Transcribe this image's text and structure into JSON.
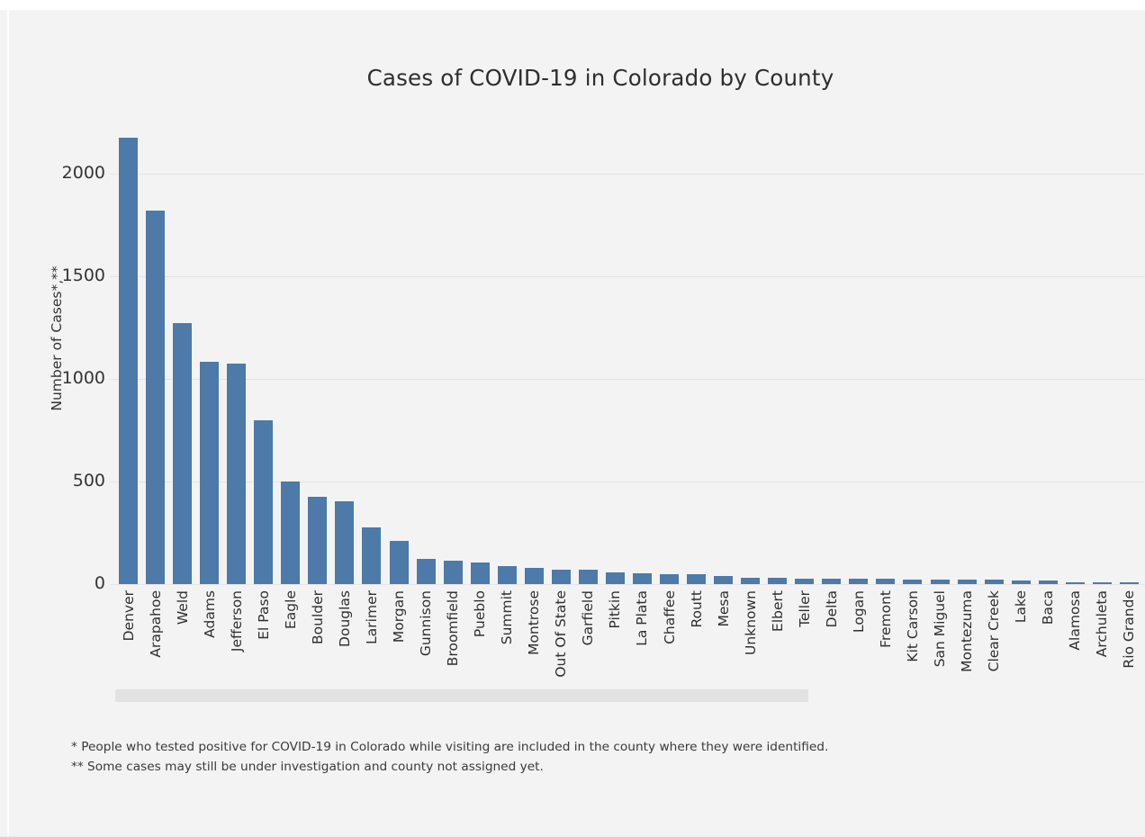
{
  "title": "Cases of COVID-19 in Colorado by County",
  "footnotes": [
    "* People who tested positive for COVID-19 in Colorado while visiting are included in the county where they were identified.",
    "** Some cases may still be under investigation and county not assigned yet."
  ],
  "colors": {
    "bar": "#4d7aa8",
    "background": "#f3f3f3",
    "gridline": "#e4e4e6",
    "scrollbar_thumb": "#e2e2e2",
    "text": "#343434"
  },
  "scrollbar": {
    "present": true,
    "orientation": "horizontal"
  },
  "chart_data": {
    "type": "bar",
    "title": "Cases of COVID-19 in Colorado by County",
    "xlabel": "",
    "ylabel": "Number of Cases*,**",
    "ylim": [
      0,
      2230
    ],
    "yticks": [
      0,
      500,
      1000,
      1500,
      2000
    ],
    "grid": true,
    "legend": "none",
    "bar_color": "#4d7aa8",
    "categories": [
      "Denver",
      "Arapahoe",
      "Weld",
      "Adams",
      "Jefferson",
      "El Paso",
      "Eagle",
      "Boulder",
      "Douglas",
      "Larimer",
      "Morgan",
      "Gunnison",
      "Broomfield",
      "Pueblo",
      "Summit",
      "Montrose",
      "Out Of State",
      "Garfield",
      "Pitkin",
      "La Plata",
      "Chaffee",
      "Routt",
      "Mesa",
      "Unknown",
      "Elbert",
      "Teller",
      "Delta",
      "Logan",
      "Fremont",
      "Kit Carson",
      "San Miguel",
      "Montezuma",
      "Clear Creek",
      "Lake",
      "Baca",
      "Alamosa",
      "Archuleta",
      "Rio Grande"
    ],
    "values": [
      2175,
      1820,
      1270,
      1085,
      1075,
      800,
      500,
      425,
      403,
      275,
      210,
      122,
      115,
      106,
      88,
      79,
      72,
      71,
      59,
      51,
      50,
      48,
      38,
      31,
      29,
      28,
      27,
      26,
      25,
      24,
      23,
      22,
      20,
      18,
      16,
      9,
      8,
      7
    ]
  }
}
